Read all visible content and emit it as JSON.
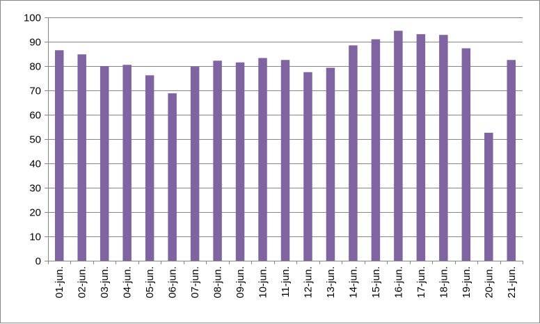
{
  "chart_data": {
    "type": "bar",
    "title": "",
    "xlabel": "",
    "ylabel": "",
    "categories": [
      "01-jun.",
      "02-jun.",
      "03-jun.",
      "04-jun.",
      "05-jun.",
      "06-jun.",
      "07-jun.",
      "08-jun.",
      "09-jun.",
      "10-jun.",
      "11-jun.",
      "12-jun.",
      "13-jun.",
      "14-jun.",
      "15-jun.",
      "16-jun.",
      "17-jun.",
      "18-jun.",
      "19-jun.",
      "20-jun.",
      "21-jun."
    ],
    "values": [
      86.5,
      84.8,
      80.0,
      80.5,
      76.2,
      68.8,
      79.7,
      82.2,
      81.5,
      83.3,
      82.5,
      77.5,
      79.3,
      88.5,
      91.0,
      94.5,
      93.1,
      92.8,
      87.3,
      52.6,
      82.5
    ],
    "yticks": [
      0,
      10,
      20,
      30,
      40,
      50,
      60,
      70,
      80,
      90,
      100
    ],
    "ylim": [
      0,
      100
    ],
    "grid": "horizontal",
    "legend": "none",
    "bar_color": "#8064A2",
    "grid_color": "#868686"
  }
}
